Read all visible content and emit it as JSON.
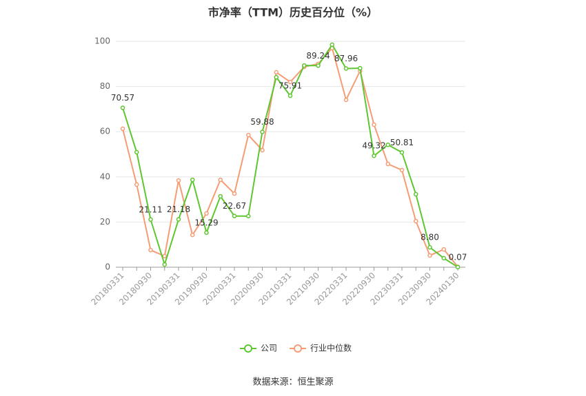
{
  "chart_data": {
    "type": "line",
    "title": "市净率（TTM）历史百分位（%）",
    "source": "数据来源：恒生聚源",
    "categories": [
      "20180331",
      null,
      "20180930",
      null,
      "20190331",
      null,
      "20190930",
      null,
      "20200331",
      null,
      "20200930",
      null,
      "20210331",
      null,
      "20210930",
      null,
      "20220331",
      null,
      "20220930",
      null,
      "20230331",
      null,
      "20230930",
      null,
      "20240130"
    ],
    "series": [
      {
        "name": "公司",
        "color": "#5ec630",
        "values": [
          70.57,
          50.9,
          21.11,
          1.2,
          21.18,
          38.7,
          15.29,
          31.4,
          22.67,
          22.6,
          59.88,
          84.1,
          75.91,
          89.3,
          89.24,
          98.5,
          87.96,
          88.1,
          49.32,
          54.2,
          50.81,
          32.3,
          8.8,
          4.0,
          0.07
        ],
        "value_labels": [
          "70.57",
          null,
          "21.11",
          null,
          "21.18",
          null,
          "15.29",
          null,
          "22.67",
          null,
          "59.88",
          null,
          "75.91",
          null,
          "89.24",
          null,
          "87.96",
          null,
          "49.32",
          null,
          "50.81",
          null,
          "8.80",
          null,
          "0.07"
        ]
      },
      {
        "name": "行业中位数",
        "color": "#f59c74",
        "values": [
          61.3,
          36.6,
          7.6,
          4.9,
          38.4,
          14.3,
          23.8,
          38.7,
          32.6,
          58.5,
          51.8,
          86.3,
          82.0,
          88.7,
          90.0,
          97.0,
          74.1,
          86.9,
          63.1,
          45.7,
          43.0,
          20.4,
          5.2,
          7.9,
          0.2
        ]
      }
    ],
    "ylim": [
      0,
      100
    ],
    "yticks": [
      0,
      20,
      40,
      60,
      80,
      100
    ],
    "grid": true,
    "legend": "bottom"
  }
}
